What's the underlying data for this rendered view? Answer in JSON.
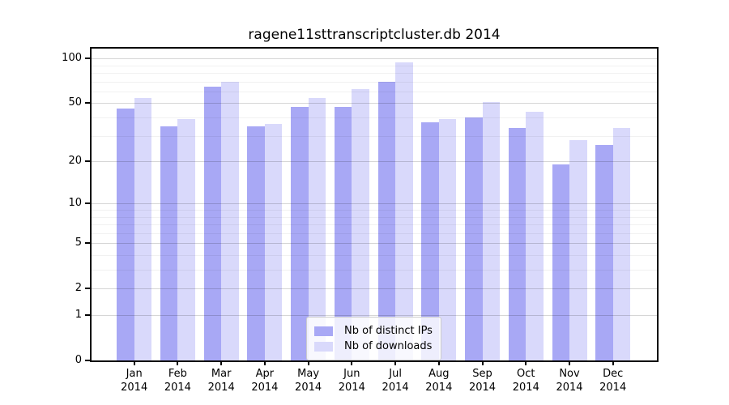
{
  "title": "ragene11sttranscriptcluster.db 2014",
  "legend": {
    "items": [
      {
        "label": "Nb of distinct IPs",
        "color": "#a8a8f5"
      },
      {
        "label": "Nb of downloads",
        "color": "#d9d9fb"
      }
    ]
  },
  "chart_data": {
    "type": "bar",
    "title": "ragene11sttranscriptcluster.db 2014",
    "categories": [
      "Jan",
      "Feb",
      "Mar",
      "Apr",
      "May",
      "Jun",
      "Jul",
      "Aug",
      "Sep",
      "Oct",
      "Nov",
      "Dec"
    ],
    "category_year": "2014",
    "series": [
      {
        "name": "Nb of distinct IPs",
        "color": "#a8a8f5",
        "values": [
          46,
          35,
          65,
          35,
          47,
          47,
          70,
          37,
          40,
          34,
          19,
          26
        ]
      },
      {
        "name": "Nb of downloads",
        "color": "#d9d9fb",
        "values": [
          54,
          39,
          70,
          36,
          54,
          62,
          94,
          39,
          51,
          44,
          28,
          34
        ]
      }
    ],
    "xlabel": "",
    "ylabel": "",
    "yscale": "log10(value+1)",
    "ylim": [
      0,
      116
    ],
    "yticks": [
      100,
      50,
      20,
      10,
      5,
      2,
      1,
      0
    ],
    "minor_gridlines": [
      3,
      4,
      6,
      7,
      8,
      9,
      30,
      40,
      60,
      70,
      80,
      90
    ],
    "grid": true,
    "legend_position": "bottom-center"
  }
}
